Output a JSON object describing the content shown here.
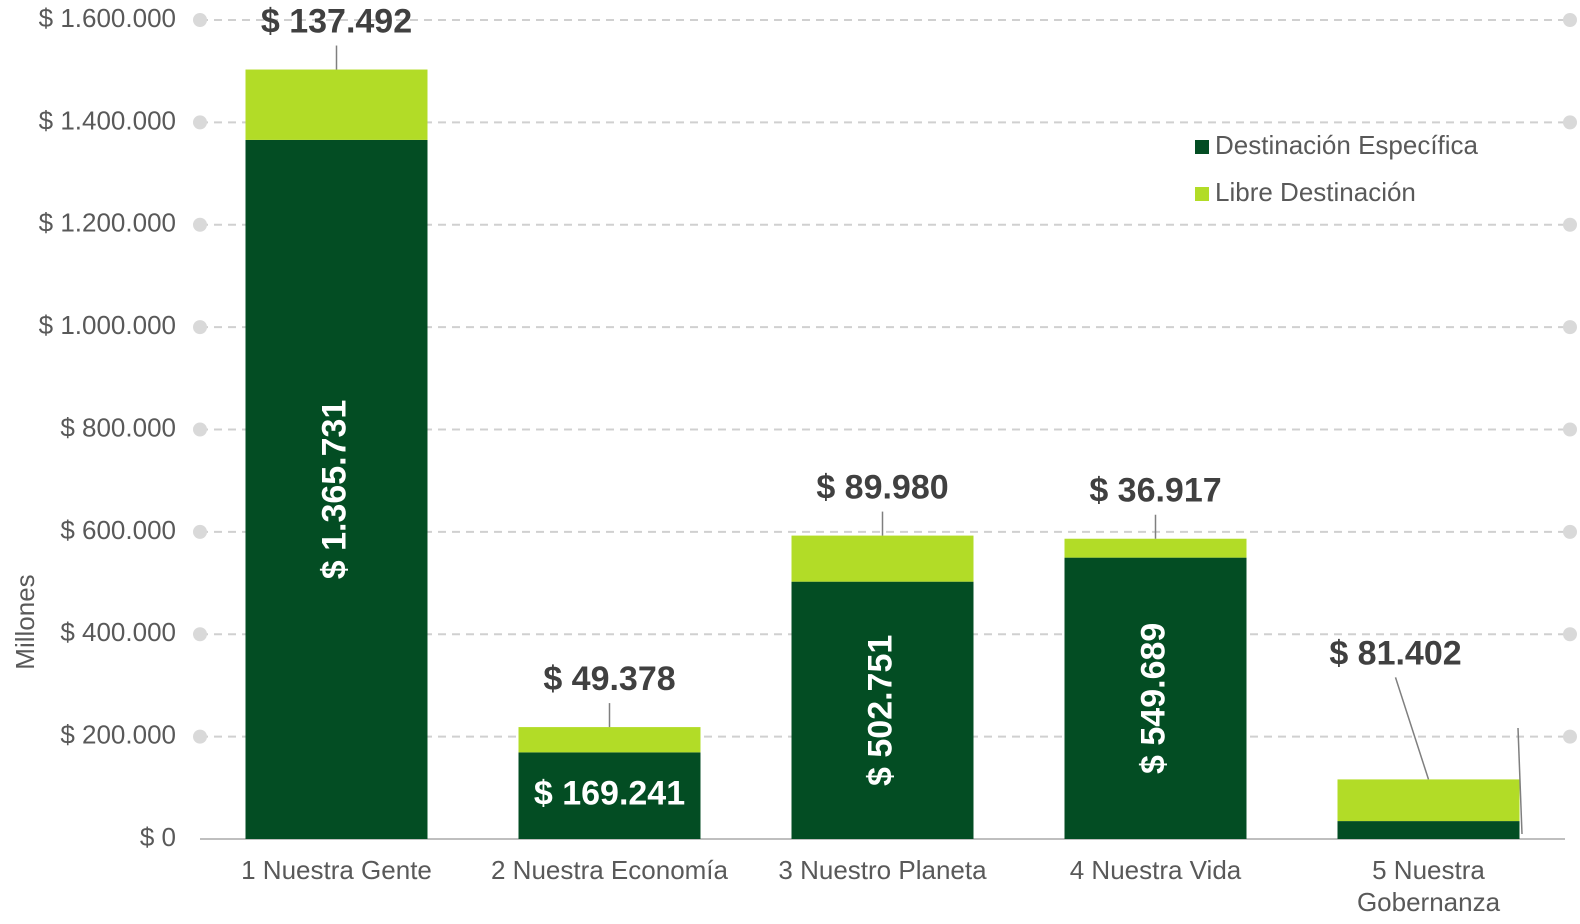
{
  "chart_data": {
    "type": "bar",
    "stacked": true,
    "y_label": "Millones",
    "categories": [
      "1 Nuestra Gente",
      "2 Nuestra Economía",
      "3 Nuestro Planeta",
      "4 Nuestra Vida",
      "5 Nuestra Gobernanza"
    ],
    "series": [
      {
        "name": "Destinación Específica",
        "color": "#034d23",
        "values": [
          1365731,
          169241,
          502751,
          549689,
          35000
        ],
        "value_labels": [
          "$ 1.365.731",
          "$ 169.241",
          "$ 502.751",
          "$ 549.689",
          null
        ]
      },
      {
        "name": "Libre Destinación",
        "color": "#b2dc27",
        "values": [
          137492,
          49378,
          89980,
          36917,
          81402
        ],
        "value_labels": [
          "$ 137.492",
          "$ 49.378",
          "$ 89.980",
          "$ 36.917",
          "$ 81.402"
        ]
      }
    ],
    "ylim": [
      0,
      1600000
    ],
    "yticks": [
      {
        "value": 0,
        "label": "$ 0"
      },
      {
        "value": 200000,
        "label": "$ 200.000"
      },
      {
        "value": 400000,
        "label": "$ 400.000"
      },
      {
        "value": 600000,
        "label": "$ 600.000"
      },
      {
        "value": 800000,
        "label": "$ 800.000"
      },
      {
        "value": 1000000,
        "label": "$ 1.000.000"
      },
      {
        "value": 1200000,
        "label": "$ 1.200.000"
      },
      {
        "value": 1400000,
        "label": "$ 1.400.000"
      },
      {
        "value": 1600000,
        "label": "$ 1.600.000"
      }
    ],
    "grid": true,
    "legend": "upper right"
  }
}
